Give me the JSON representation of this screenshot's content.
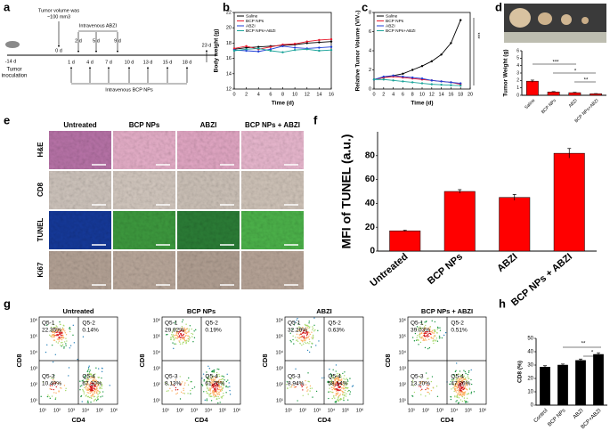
{
  "timeline": {
    "panel": "a",
    "start": "-14 d",
    "note": [
      "Tumor volume was",
      "~100 mm3"
    ],
    "abzi_label": "Intravenous ABZI",
    "zero": "0 d",
    "abzi_days": [
      "2 d",
      "5 d",
      "9 d"
    ],
    "bcp_days": [
      "1 d",
      "4 d",
      "7 d",
      "10 d",
      "13 d",
      "15 d",
      "18 d"
    ],
    "end": "23 d",
    "inoculation": [
      "Tumor",
      "inoculation"
    ],
    "bcp_label": "Intravenous  BCP NPs"
  },
  "histology": {
    "panel": "e",
    "columns": [
      "Untreated",
      "BCP NPs",
      "ABZI",
      "BCP NPs + ABZI"
    ],
    "rows": [
      "H&E",
      "CD8",
      "TUNEL",
      "Ki67"
    ]
  },
  "flow": {
    "panel": "g",
    "xlabel": "CD4",
    "ylabel": "CD8",
    "ticks": [
      "10¹",
      "10²",
      "10³",
      "10⁴",
      "10⁵",
      "10⁶"
    ],
    "plots": [
      {
        "title": "Untreated",
        "quadrants": [
          {
            "name": "Q5-1",
            "value": "22.35%"
          },
          {
            "name": "Q5-2",
            "value": "0.14%"
          },
          {
            "name": "Q5-3",
            "value": "10.40%"
          },
          {
            "name": "Q5-4",
            "value": "67.10%"
          }
        ]
      },
      {
        "title": "BCP NPs",
        "quadrants": [
          {
            "name": "Q5-1",
            "value": "29.92%"
          },
          {
            "name": "Q5-2",
            "value": "0.19%"
          },
          {
            "name": "Q5-3",
            "value": "8.13%"
          },
          {
            "name": "Q5-4",
            "value": "61.75%"
          }
        ]
      },
      {
        "title": "ABZI",
        "quadrants": [
          {
            "name": "Q5-1",
            "value": "32.29%"
          },
          {
            "name": "Q5-2",
            "value": "0.63%"
          },
          {
            "name": "Q5-3",
            "value": "8.94%"
          },
          {
            "name": "Q5-4",
            "value": "58.14%"
          }
        ]
      },
      {
        "title": "BCP NPs + ABZI",
        "quadrants": [
          {
            "name": "Q5-1",
            "value": "39.03%"
          },
          {
            "name": "Q5-2",
            "value": "0.51%"
          },
          {
            "name": "Q5-3",
            "value": "13.20%"
          },
          {
            "name": "Q5-4",
            "value": "47.26%"
          }
        ]
      }
    ]
  },
  "chart_data": [
    {
      "type": "line",
      "panel": "b",
      "xlabel": "Time (d)",
      "ylabel": "Body weight (g)",
      "x": [
        0,
        2,
        4,
        6,
        8,
        10,
        12,
        14,
        16
      ],
      "xlim": [
        0,
        16
      ],
      "xticks": [
        0,
        2,
        4,
        6,
        8,
        10,
        12,
        14,
        16
      ],
      "ylim": [
        12,
        22
      ],
      "yticks": [
        12,
        14,
        16,
        18,
        20,
        22
      ],
      "series": [
        {
          "name": "Saline",
          "color": "#000000",
          "values": [
            17.2,
            17.4,
            17.5,
            17.6,
            17.7,
            17.8,
            18.0,
            18.1,
            18.2
          ]
        },
        {
          "name": "BCP NPs",
          "color": "#e8192c",
          "values": [
            17.3,
            17.6,
            17.2,
            17.5,
            17.8,
            17.9,
            18.2,
            18.4,
            18.5
          ]
        },
        {
          "name": "ABZI",
          "color": "#1f3fd6",
          "values": [
            17.1,
            17.0,
            16.9,
            17.2,
            17.6,
            17.4,
            17.3,
            17.4,
            17.5
          ]
        },
        {
          "name": "BCP NPs+ABZI",
          "color": "#1aa39a",
          "values": [
            17.0,
            17.2,
            17.3,
            17.0,
            16.8,
            17.1,
            17.2,
            17.0,
            17.1
          ]
        }
      ]
    },
    {
      "type": "line",
      "panel": "c",
      "xlabel": "Time (d)",
      "ylabel": "Relative Tumor Volume (V/V₀)",
      "x": [
        0,
        2,
        4,
        6,
        8,
        10,
        12,
        14,
        16,
        18
      ],
      "xlim": [
        0,
        20
      ],
      "xticks": [
        0,
        2,
        4,
        6,
        8,
        10,
        12,
        14,
        16,
        18,
        20
      ],
      "ylim": [
        0,
        8
      ],
      "yticks": [
        0,
        2,
        4,
        6,
        8
      ],
      "annotations": [
        "***"
      ],
      "series": [
        {
          "name": "Saline",
          "color": "#000000",
          "values": [
            1,
            1.2,
            1.4,
            1.6,
            2.0,
            2.4,
            2.9,
            3.6,
            4.8,
            7.2
          ]
        },
        {
          "name": "BCP NPs",
          "color": "#e8192c",
          "values": [
            1,
            1.2,
            1.3,
            1.2,
            1.1,
            1.0,
            0.9,
            0.8,
            0.7,
            0.5
          ]
        },
        {
          "name": "ABZI",
          "color": "#1f3fd6",
          "values": [
            1,
            1.3,
            1.4,
            1.3,
            1.2,
            1.1,
            0.9,
            0.8,
            0.7,
            0.6
          ]
        },
        {
          "name": "BCP NPs+ABZI",
          "color": "#1aa39a",
          "values": [
            1,
            1.0,
            0.9,
            0.8,
            0.7,
            0.6,
            0.5,
            0.45,
            0.4,
            0.35
          ]
        }
      ]
    },
    {
      "type": "bar",
      "panel": "d",
      "ylabel": "Tumor Weight (g)",
      "categories": [
        "Saline",
        "BCP NPs",
        "ABZI",
        "BCP NPs+ABZI"
      ],
      "values": [
        1.9,
        0.45,
        0.35,
        0.2
      ],
      "errors": [
        0.15,
        0.05,
        0.05,
        0.03
      ],
      "color": "#ff0000",
      "ylim": [
        0,
        6
      ],
      "yticks": [
        0,
        1,
        2,
        3,
        4,
        5,
        6
      ],
      "annotations": [
        "***",
        "*",
        "**"
      ]
    },
    {
      "type": "bar",
      "panel": "f",
      "ylabel": "MFI of TUNEL (a.u.)",
      "categories": [
        "Untreated",
        "BCP NPs",
        "ABZI",
        "BCP NPs + ABZI"
      ],
      "values": [
        17,
        50,
        45,
        82
      ],
      "errors": [
        0.5,
        1.5,
        2.5,
        4
      ],
      "color": "#ff0000",
      "ylim": [
        0,
        100
      ],
      "yticks": [
        0,
        20,
        40,
        60,
        80
      ]
    },
    {
      "type": "bar",
      "panel": "h",
      "ylabel": "CD8 (%)",
      "categories": [
        "Control",
        "BCP NPs",
        "ABZI",
        "BCP+ABZI"
      ],
      "values": [
        28.5,
        30,
        33.5,
        38
      ],
      "errors": [
        1,
        0.8,
        1,
        1.2
      ],
      "color": "#000000",
      "ylim": [
        0,
        50
      ],
      "yticks": [
        0,
        10,
        20,
        30,
        40,
        50
      ],
      "annotations": [
        "**",
        "*"
      ]
    }
  ]
}
